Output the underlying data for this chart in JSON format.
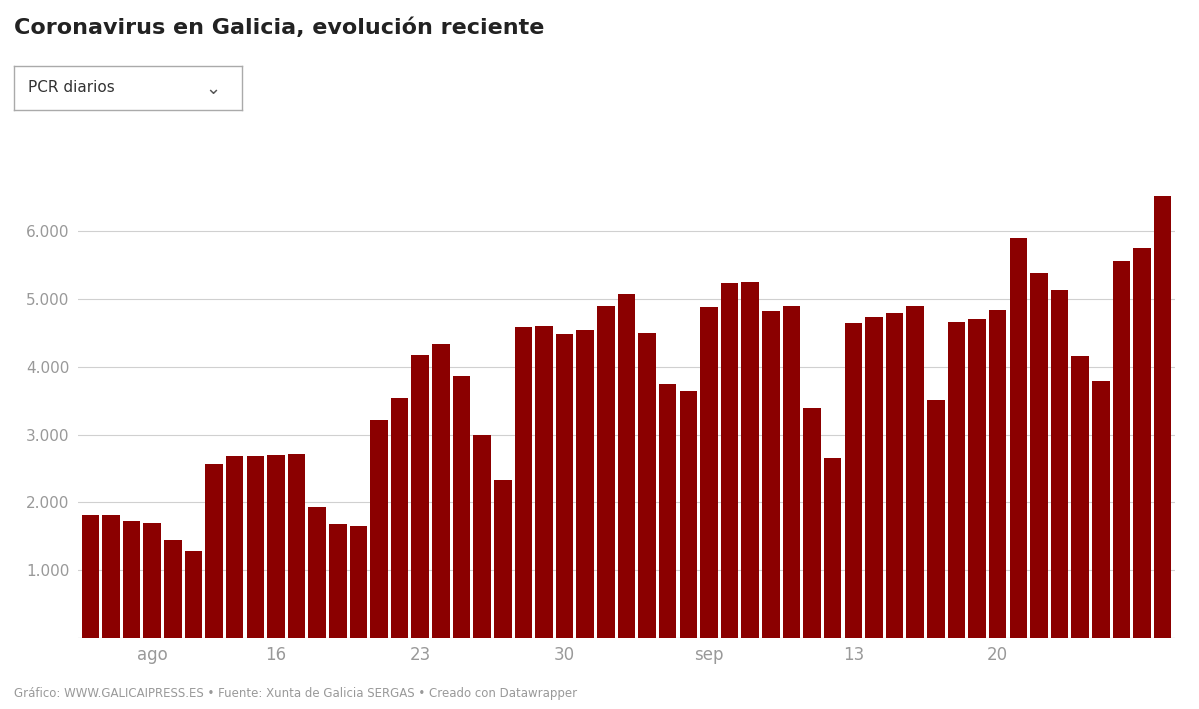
{
  "title": "Coronavirus en Galicia, evolución reciente",
  "dropdown_label": "PCR diarios",
  "bar_color": "#8B0000",
  "background_color": "#ffffff",
  "grid_color": "#d0d0d0",
  "axis_tick_color": "#999999",
  "values": [
    1820,
    1810,
    1720,
    1700,
    1450,
    1280,
    2560,
    2690,
    2680,
    2700,
    2720,
    1930,
    1680,
    1660,
    3220,
    3540,
    4180,
    4340,
    3870,
    3000,
    2330,
    4580,
    4600,
    4490,
    4550,
    4900,
    5080,
    4500,
    3750,
    3650,
    4880,
    5230,
    5250,
    4830,
    4900,
    3390,
    2660,
    4640,
    4730,
    4790,
    4900,
    3510,
    4660,
    4700,
    4840,
    5900,
    5380,
    5140,
    4160,
    3790,
    5560,
    5750,
    6520
  ],
  "x_tick_labels": [
    "ago",
    "16",
    "23",
    "30",
    "sep",
    "13",
    "20"
  ],
  "x_tick_positions": [
    3,
    9,
    16,
    23,
    30,
    37,
    44
  ],
  "y_ticks": [
    0,
    1000,
    2000,
    3000,
    4000,
    5000,
    6000
  ],
  "y_tick_labels": [
    "",
    "1.000",
    "2.000",
    "3.000",
    "4.000",
    "5.000",
    "6.000"
  ],
  "ylim": [
    0,
    6900
  ],
  "footer_text": "Gráfico: WWW.GALICAIPRESS.ES • Fuente: Xunta de Galicia SERGAS • Creado con Datawrapper"
}
